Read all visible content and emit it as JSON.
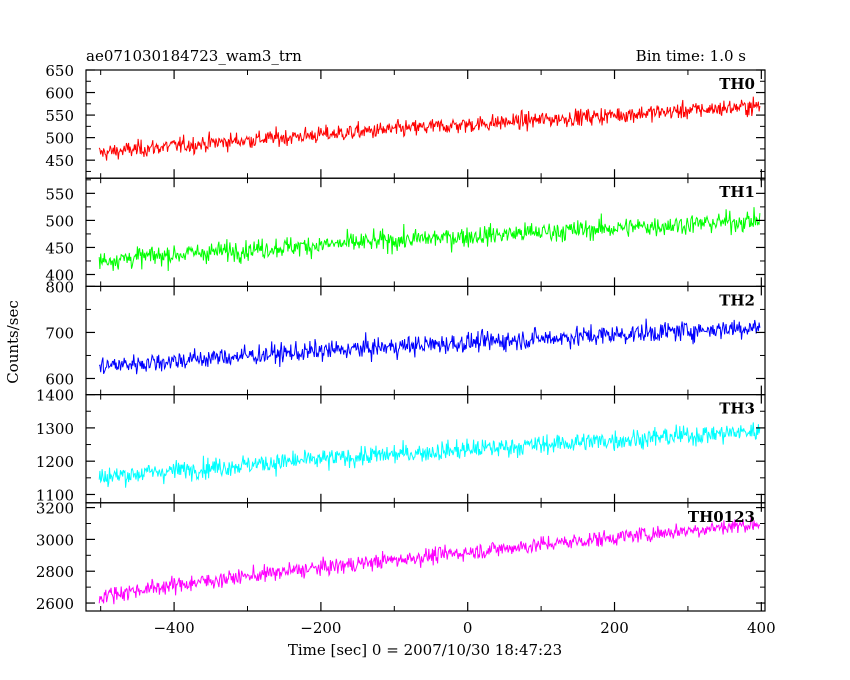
{
  "chart_data": {
    "type": "line",
    "title": "ae071030184723_wam3_trn",
    "bin_time_label": "Bin time: 1.0 s",
    "xlabel": "Time [sec] 0 = 2007/10/30 18:47:23",
    "ylabel": "Counts/sec",
    "xlim": [
      -520,
      405
    ],
    "x_ticks": [
      -400,
      -200,
      0,
      200,
      400
    ],
    "x_tick_labels": [
      "−400",
      "−200",
      "0",
      "200",
      "400"
    ],
    "x_range": [
      -502,
      398
    ],
    "panels": [
      {
        "name": "TH0",
        "color": "#ff0000",
        "ylim": [
          410,
          650
        ],
        "y_ticks": [
          450,
          500,
          550,
          600,
          650
        ],
        "y_tick_labels": [
          "450",
          "500",
          "550",
          "600",
          "650"
        ],
        "start_mean": 465,
        "end_mean": 570,
        "noise": 24
      },
      {
        "name": "TH1",
        "color": "#00ff00",
        "ylim": [
          378,
          578
        ],
        "y_ticks": [
          400,
          450,
          500,
          550
        ],
        "y_tick_labels": [
          "400",
          "450",
          "500",
          "550"
        ],
        "start_mean": 425,
        "end_mean": 500,
        "noise": 24
      },
      {
        "name": "TH2",
        "color": "#0000ff",
        "ylim": [
          565,
          800
        ],
        "y_ticks": [
          600,
          700,
          800
        ],
        "y_tick_labels": [
          "600",
          "700",
          "800"
        ],
        "start_mean": 625,
        "end_mean": 712,
        "noise": 28
      },
      {
        "name": "TH3",
        "color": "#00ffff",
        "ylim": [
          1075,
          1400
        ],
        "y_ticks": [
          1100,
          1200,
          1300,
          1400
        ],
        "y_tick_labels": [
          "1100",
          "1200",
          "1300",
          "1400"
        ],
        "start_mean": 1150,
        "end_mean": 1290,
        "noise": 38
      },
      {
        "name": "TH0123",
        "color": "#ff00ff",
        "ylim": [
          2550,
          3230
        ],
        "y_ticks": [
          2600,
          2800,
          3000,
          3200
        ],
        "y_tick_labels": [
          "2600",
          "2800",
          "3000",
          "3200"
        ],
        "start_mean": 2640,
        "end_mean": 3100,
        "noise": 65
      }
    ]
  }
}
